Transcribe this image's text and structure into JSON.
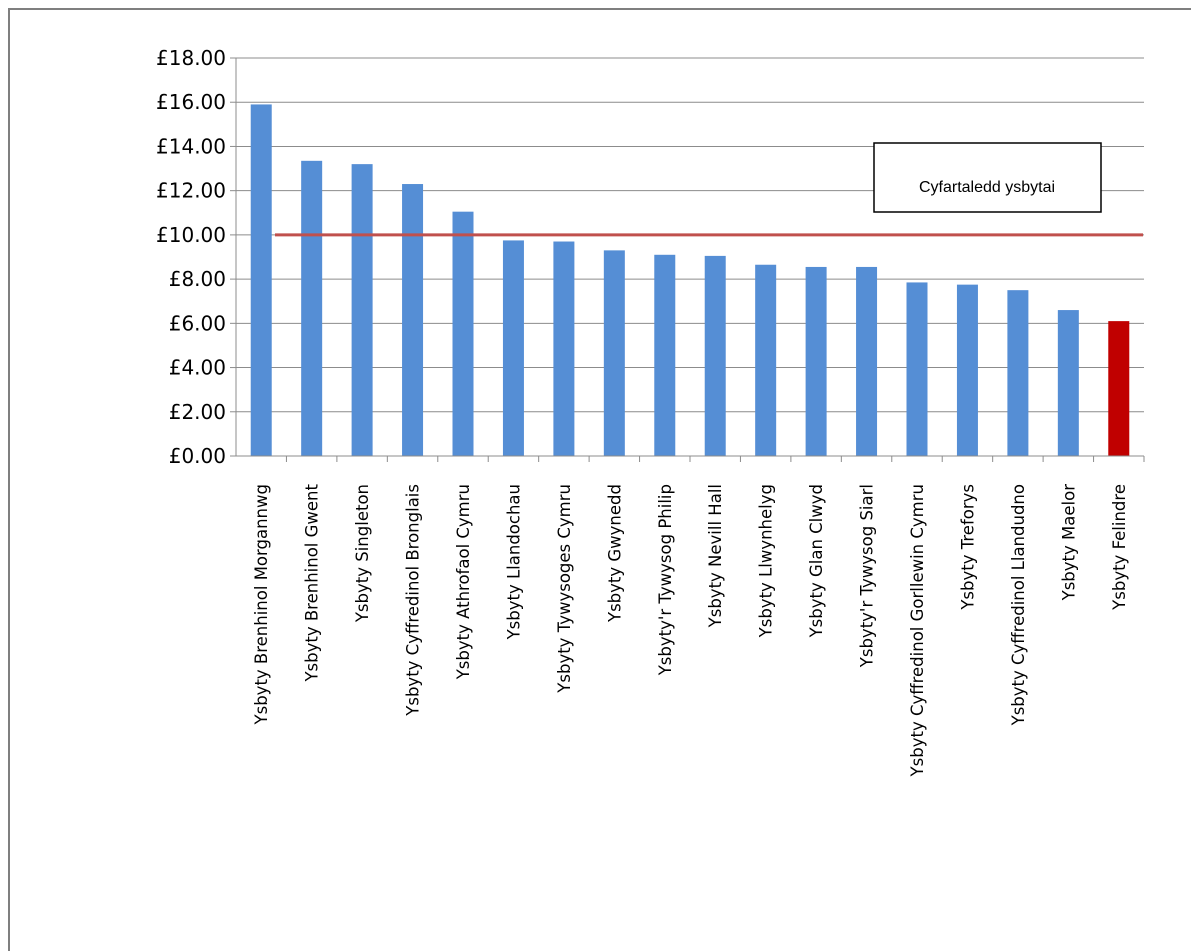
{
  "header": {
    "title": ""
  },
  "chart_data": {
    "type": "bar",
    "title": "",
    "xlabel": "",
    "ylabel": "",
    "ylim": [
      0,
      18
    ],
    "yticks": [
      "£0.00",
      "£2.00",
      "£4.00",
      "£6.00",
      "£8.00",
      "£10.00",
      "£12.00",
      "£14.00",
      "£16.00",
      "£18.00"
    ],
    "grid": true,
    "categories": [
      "Ysbyty Brenhinol Morgannwg",
      "Ysbyty Brenhinol Gwent",
      "Ysbyty Singleton",
      "Ysbyty Cyffredinol Bronglais",
      "Ysbyty Athrofaol Cymru",
      "Ysbyty Llandochau",
      "Ysbyty Tywysoges Cymru",
      "Ysbyty Gwynedd",
      "Ysbyty'r Tywysog Philip",
      "Ysbyty Nevill Hall",
      "Ysbyty Llwynhelyg",
      "Ysbyty Glan Clwyd",
      "Ysbyty'r Tywysog Siarl",
      "Ysbyty Cyffredinol Gorllewin Cymru",
      "Ysbyty Treforys",
      "Ysbyty Cyffredinol Llandudno",
      "Ysbyty Maelor",
      "Ysbyty Felindre"
    ],
    "values": [
      15.9,
      13.35,
      13.2,
      12.3,
      11.05,
      9.75,
      9.7,
      9.3,
      9.1,
      9.05,
      8.65,
      8.55,
      8.55,
      7.85,
      7.75,
      7.5,
      6.6,
      6.1
    ],
    "bar_colors": [
      "#558ED5",
      "#558ED5",
      "#558ED5",
      "#558ED5",
      "#558ED5",
      "#558ED5",
      "#558ED5",
      "#558ED5",
      "#558ED5",
      "#558ED5",
      "#558ED5",
      "#558ED5",
      "#558ED5",
      "#558ED5",
      "#558ED5",
      "#558ED5",
      "#558ED5",
      "#C00000"
    ],
    "average": {
      "label": "Cyfartaledd ysbytai",
      "value": 10.0,
      "color": "#C0504D"
    }
  }
}
